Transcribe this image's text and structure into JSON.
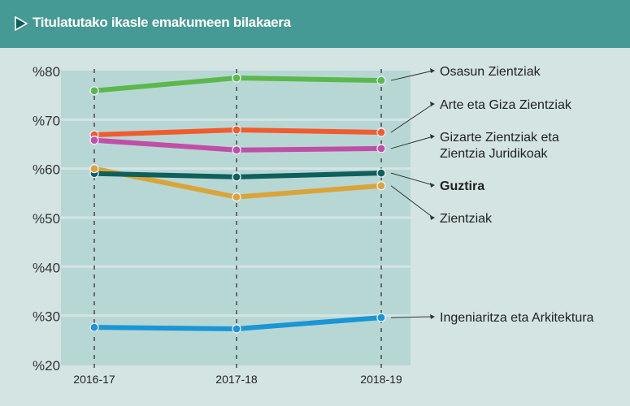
{
  "header": {
    "title": "Titulatutako ikasle emakumeen bilakaera",
    "icon": "play-triangle-icon"
  },
  "chart_data": {
    "type": "line",
    "title": "Titulatutako ikasle emakumeen bilakaera",
    "categories": [
      "2016-17",
      "2017-18",
      "2018-19"
    ],
    "ylim": [
      20,
      80
    ],
    "yticks": [
      "%80",
      "%70",
      "%60",
      "%50",
      "%40",
      "%30",
      "%20"
    ],
    "ytick_values": [
      80,
      70,
      60,
      50,
      40,
      30,
      20
    ],
    "grid": true,
    "legend": "right (labels at line ends)",
    "series": [
      {
        "name": "Osasun Zientziak",
        "values": [
          75.9,
          78.5,
          78.0
        ],
        "color": "#5db84b",
        "bold": false
      },
      {
        "name": "Arte eta Giza Zientziak",
        "values": [
          66.9,
          67.9,
          67.4
        ],
        "color": "#f15b2d",
        "bold": false
      },
      {
        "name": "Gizarte Zientziak eta Zientzia Juridikoak",
        "values": [
          65.8,
          63.8,
          64.1
        ],
        "color": "#c04fa6",
        "bold": false
      },
      {
        "name": "Guztira",
        "values": [
          59.0,
          58.3,
          59.1
        ],
        "color": "#0f5f5a",
        "bold": true
      },
      {
        "name": "Zientziak",
        "values": [
          60.0,
          54.2,
          56.5
        ],
        "color": "#d9a53b",
        "bold": false
      },
      {
        "name": "Ingeniaritza eta Arkitektura",
        "values": [
          27.6,
          27.3,
          29.6
        ],
        "color": "#1b95d5",
        "bold": false
      }
    ]
  }
}
